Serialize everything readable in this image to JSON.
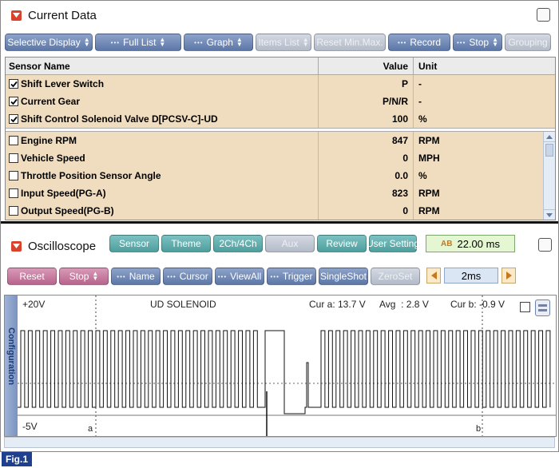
{
  "current_data": {
    "title": "Current Data",
    "toolbar": [
      {
        "label": "Selective Display",
        "style": "blue",
        "dots": false,
        "arrows": true
      },
      {
        "label": "Full List",
        "style": "blue",
        "dots": true,
        "arrows": true
      },
      {
        "label": "Graph",
        "style": "blue",
        "dots": true,
        "arrows": true
      },
      {
        "label": "Items List",
        "style": "gray",
        "dots": false,
        "arrows": true
      },
      {
        "label": "Reset Min.Max.",
        "style": "gray",
        "dots": false,
        "arrows": false
      },
      {
        "label": "Record",
        "style": "blue",
        "dots": true,
        "arrows": false
      },
      {
        "label": "Stop",
        "style": "blue",
        "dots": true,
        "arrows": true
      },
      {
        "label": "Grouping",
        "style": "gray",
        "dots": false,
        "arrows": false
      }
    ],
    "columns": {
      "name": "Sensor Name",
      "value": "Value",
      "unit": "Unit"
    },
    "fixed_rows": [
      {
        "name": "Shift Lever Switch",
        "value": "P",
        "unit": "-",
        "checked": true
      },
      {
        "name": "Current Gear",
        "value": "P/N/R",
        "unit": "-",
        "checked": true
      },
      {
        "name": "Shift Control Solenoid Valve D[PCSV-C]-UD",
        "value": "100",
        "unit": "%",
        "checked": true
      }
    ],
    "rows": [
      {
        "name": "Engine RPM",
        "value": "847",
        "unit": "RPM",
        "checked": false
      },
      {
        "name": "Vehicle Speed",
        "value": "0",
        "unit": "MPH",
        "checked": false
      },
      {
        "name": "Throttle Position Sensor Angle",
        "value": "0.0",
        "unit": "%",
        "checked": false
      },
      {
        "name": "Input Speed(PG-A)",
        "value": "823",
        "unit": "RPM",
        "checked": false
      },
      {
        "name": "Output Speed(PG-B)",
        "value": "0",
        "unit": "RPM",
        "checked": false
      }
    ]
  },
  "oscilloscope": {
    "title": "Oscilloscope",
    "top_buttons": [
      {
        "label": "Sensor",
        "style": "teal"
      },
      {
        "label": "Theme",
        "style": "teal"
      },
      {
        "label": "2Ch/4Ch",
        "style": "teal"
      },
      {
        "label": "Aux",
        "style": "gray"
      },
      {
        "label": "Review",
        "style": "teal"
      },
      {
        "label": "User Setting",
        "style": "teal"
      }
    ],
    "time_readout": "22.00 ms",
    "bottom_buttons": [
      {
        "label": "Reset",
        "style": "pink",
        "dots": false,
        "arrows": false
      },
      {
        "label": "Stop",
        "style": "pink",
        "dots": false,
        "arrows": true
      },
      {
        "label": "Name",
        "style": "blue",
        "dots": true,
        "arrows": false
      },
      {
        "label": "Cursor",
        "style": "blue",
        "dots": true,
        "arrows": false
      },
      {
        "label": "ViewAll",
        "style": "blue",
        "dots": true,
        "arrows": false
      },
      {
        "label": "Trigger",
        "style": "blue",
        "dots": true,
        "arrows": false
      },
      {
        "label": "SingleShot",
        "style": "blue",
        "dots": false,
        "arrows": false
      },
      {
        "label": "ZeroSet",
        "style": "gray",
        "dots": false,
        "arrows": false
      }
    ],
    "time_div": "2ms",
    "side_tab": "Configuration",
    "display": {
      "vmax": "+20V",
      "vmin": "-5V",
      "channel": "UD SOLENOID",
      "cur_a_label": "Cur a: 13.7 V",
      "avg_label": "Avg  : 2.8 V",
      "cur_b_label": "Cur b: -0.9 V",
      "cursor_a": "a",
      "cursor_b": "b"
    }
  },
  "figure_label": "Fig.1"
}
